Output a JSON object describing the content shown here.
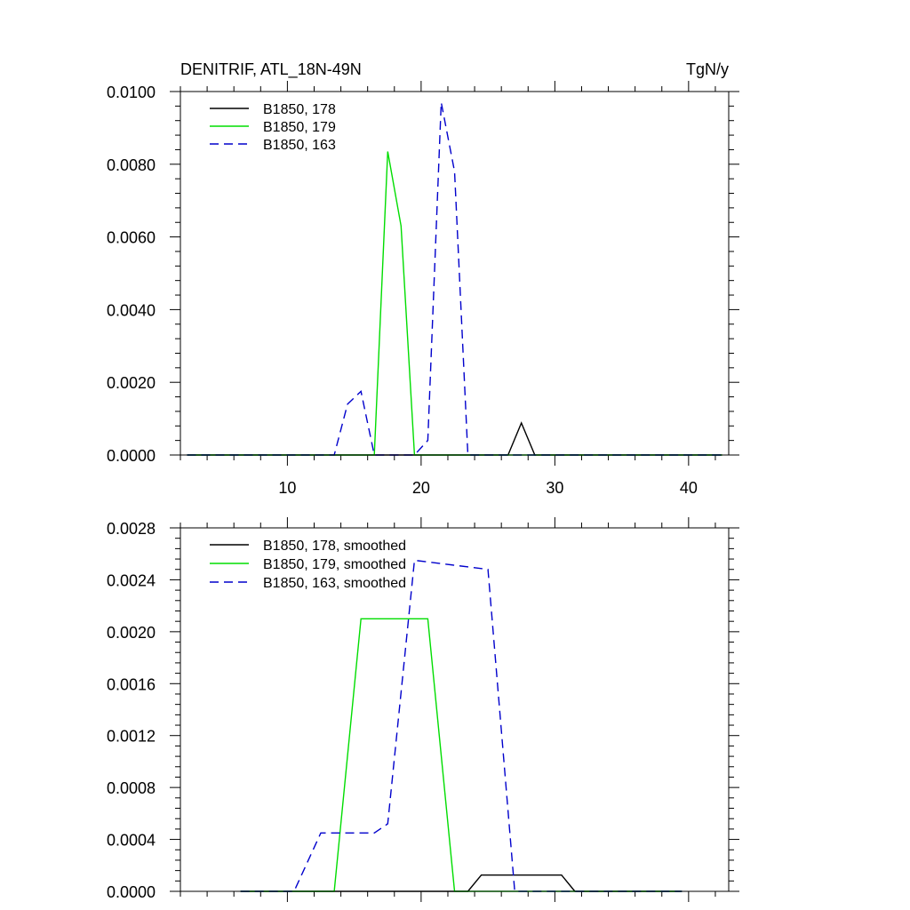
{
  "chart_data": [
    {
      "type": "line",
      "title": "DENITRIF, ATL_18N-49N",
      "units": "TgN/y",
      "xlim": [
        2,
        43
      ],
      "ylim": [
        0,
        0.01
      ],
      "xticks": [
        10,
        20,
        30,
        40
      ],
      "xtick_labels": [
        "10",
        "20",
        "30",
        "40"
      ],
      "yticks": [
        0,
        0.002,
        0.004,
        0.006,
        0.008,
        0.01
      ],
      "ytick_labels": [
        "0.0000",
        "0.0020",
        "0.0040",
        "0.0060",
        "0.0080",
        "0.0100"
      ],
      "legend_position": "top-left",
      "series": [
        {
          "name": "B1850, 178",
          "color": "#000000",
          "dash": "solid",
          "x": [
            2.5,
            26.5,
            27.5,
            28.5,
            42.5
          ],
          "y": [
            0,
            0,
            0.00088,
            0,
            0
          ]
        },
        {
          "name": "B1850, 179",
          "color": "#00dd00",
          "dash": "solid",
          "x": [
            2.5,
            16.5,
            17.5,
            18.5,
            19.5,
            42.5
          ],
          "y": [
            0,
            0,
            0.00835,
            0.0063,
            0,
            0
          ]
        },
        {
          "name": "B1850, 163",
          "color": "#0000cc",
          "dash": "dashed",
          "x": [
            2.5,
            13.5,
            14.5,
            15.5,
            16.5,
            19.5,
            20.5,
            21.5,
            22.5,
            23.5,
            42.5
          ],
          "y": [
            0,
            0,
            0.0014,
            0.00175,
            0,
            0,
            0.0004,
            0.0097,
            0.0078,
            0,
            0
          ]
        }
      ]
    },
    {
      "type": "line",
      "title": "",
      "xlim": [
        2,
        43
      ],
      "ylim": [
        0,
        0.0028
      ],
      "xticks": [
        10,
        20,
        30,
        40
      ],
      "xtick_labels": [],
      "yticks": [
        0,
        0.0004,
        0.0008,
        0.0012,
        0.0016,
        0.002,
        0.0024,
        0.0028
      ],
      "ytick_labels": [
        "0.0000",
        "0.0004",
        "0.0008",
        "0.0012",
        "0.0016",
        "0.0020",
        "0.0024",
        "0.0028"
      ],
      "legend_position": "top-left",
      "series": [
        {
          "name": "B1850, 178, smoothed",
          "color": "#000000",
          "dash": "solid",
          "x": [
            6.5,
            23.5,
            24.5,
            30.5,
            31.5,
            39.5
          ],
          "y": [
            0,
            0,
            0.000125,
            0.000125,
            0,
            0
          ]
        },
        {
          "name": "B1850, 179, smoothed",
          "color": "#00dd00",
          "dash": "solid",
          "x": [
            6.5,
            13.5,
            15.5,
            20.5,
            22.5,
            39.5
          ],
          "y": [
            0,
            0,
            0.0021,
            0.0021,
            0,
            0
          ]
        },
        {
          "name": "B1850, 163, smoothed",
          "color": "#0000cc",
          "dash": "dashed",
          "x": [
            6.5,
            10.5,
            12.5,
            16.5,
            17.5,
            19.5,
            25.0,
            27.0,
            39.5
          ],
          "y": [
            0,
            0,
            0.00045,
            0.00045,
            0.00052,
            0.00255,
            0.00248,
            0,
            0
          ]
        }
      ]
    }
  ]
}
